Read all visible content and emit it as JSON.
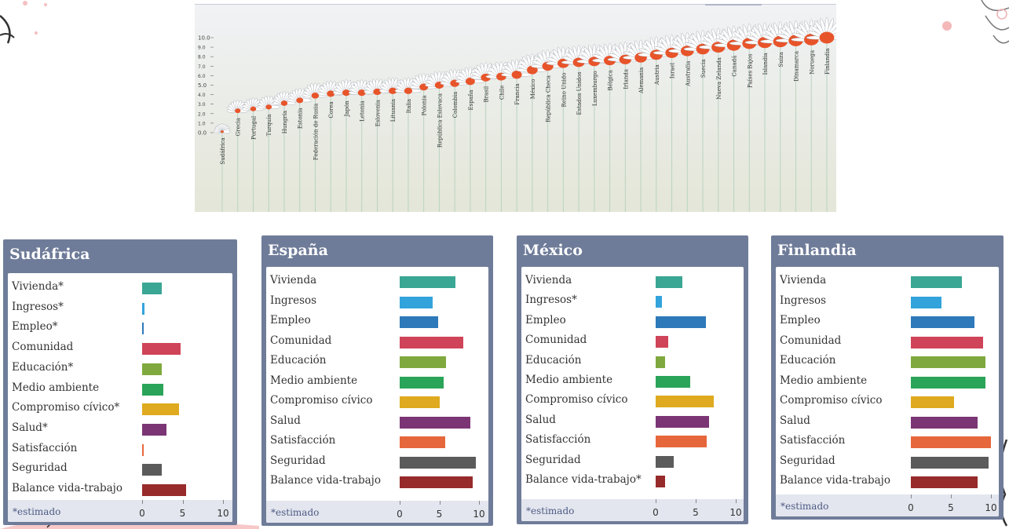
{
  "chart_data": [
    {
      "type": "line",
      "ylim": [
        0,
        10
      ],
      "yticks": [
        "0.0",
        "1.0",
        "2.0",
        "3.0",
        "4.0",
        "5.0",
        "6.0",
        "7.0",
        "8.0",
        "9.0",
        "10.0"
      ],
      "categories": [
        "Sudáfrica",
        "Grecia",
        "Portugal",
        "Turquía",
        "Hungría",
        "Estonia",
        "Federación de Rusia",
        "Corea",
        "Japón",
        "Letonia",
        "Eslovenia",
        "Lituania",
        "Italia",
        "Polonia",
        "República Eslovaca",
        "Colombia",
        "España",
        "Brasil",
        "Chile",
        "Francia",
        "México",
        "República Checa",
        "Reino Unido",
        "Estados Unidos",
        "Luxemburgo",
        "Bélgica",
        "Irlanda",
        "Alemania",
        "Austria",
        "Israel",
        "Australia",
        "Suecia",
        "Nueva Zelanda",
        "Canadá",
        "Países Bajos",
        "Islandia",
        "Suiza",
        "Dinamarca",
        "Noruega",
        "Finlandia"
      ],
      "values": [
        0.1,
        2.3,
        2.5,
        2.7,
        3.1,
        3.4,
        3.9,
        4.1,
        4.2,
        4.2,
        4.3,
        4.4,
        4.4,
        4.8,
        5.0,
        5.2,
        5.4,
        5.8,
        5.9,
        6.1,
        6.6,
        7.0,
        7.3,
        7.4,
        7.5,
        7.6,
        7.7,
        7.9,
        8.2,
        8.4,
        8.6,
        8.8,
        9.0,
        9.2,
        9.4,
        9.5,
        9.6,
        9.7,
        9.8,
        10.0
      ],
      "colors": {
        "flower": "#e8542a",
        "petal": "#ffffff",
        "stem": "#b9d3c0",
        "bg_top": "#f0f2f5",
        "bg_bottom": "#e4e6d8"
      }
    },
    {
      "type": "bar",
      "title": "Sudáfrica",
      "categories": [
        "Vivienda*",
        "Ingresos*",
        "Empleo*",
        "Comunidad",
        "Educación*",
        "Medio ambiente",
        "Compromiso cívico*",
        "Salud*",
        "Satisfacción",
        "Seguridad",
        "Balance vida-trabajo"
      ],
      "values": [
        2.4,
        0.3,
        0.2,
        4.8,
        2.4,
        2.6,
        4.6,
        3.0,
        0.1,
        2.4,
        5.4
      ],
      "xlim": [
        0,
        10
      ],
      "xticks": [
        "0",
        "5",
        "10"
      ],
      "footnote": "*estimado"
    },
    {
      "type": "bar",
      "title": "España",
      "categories": [
        "Vivienda",
        "Ingresos",
        "Empleo",
        "Comunidad",
        "Educación",
        "Medio ambiente",
        "Compromiso cívico",
        "Salud",
        "Satisfacción",
        "Seguridad",
        "Balance vida-trabajo"
      ],
      "values": [
        7.0,
        4.2,
        4.9,
        8.0,
        5.8,
        5.5,
        5.0,
        8.9,
        5.7,
        9.6,
        9.2
      ],
      "xlim": [
        0,
        10
      ],
      "xticks": [
        "0",
        "5",
        "10"
      ],
      "footnote": "*estimado"
    },
    {
      "type": "bar",
      "title": "México",
      "categories": [
        "Vivienda",
        "Ingresos*",
        "Empleo",
        "Comunidad",
        "Educación",
        "Medio ambiente",
        "Compromiso cívico",
        "Salud",
        "Satisfacción",
        "Seguridad",
        "Balance vida-trabajo*"
      ],
      "values": [
        3.3,
        0.8,
        6.3,
        1.6,
        1.2,
        4.3,
        7.3,
        6.7,
        6.4,
        2.3,
        1.2
      ],
      "xlim": [
        0,
        10
      ],
      "xticks": [
        "0",
        "5",
        "10"
      ],
      "footnote": "*estimado"
    },
    {
      "type": "bar",
      "title": "Finlandia",
      "categories": [
        "Vivienda",
        "Ingresos",
        "Empleo",
        "Comunidad",
        "Educación",
        "Medio ambiente",
        "Compromiso cívico",
        "Salud",
        "Satisfacción",
        "Seguridad",
        "Balance vida-trabajo"
      ],
      "values": [
        6.4,
        3.8,
        7.9,
        9.0,
        9.3,
        9.3,
        5.4,
        8.3,
        10.0,
        9.7,
        8.3
      ],
      "xlim": [
        0,
        10
      ],
      "xticks": [
        "0",
        "5",
        "10"
      ],
      "footnote": "*estimado"
    }
  ],
  "bar_colors": [
    "#3aa694",
    "#33a3dc",
    "#2d79ba",
    "#cf4458",
    "#7fa93e",
    "#2aa458",
    "#dfaa1f",
    "#7b3575",
    "#e6673b",
    "#5b5b5b",
    "#972a2a"
  ]
}
